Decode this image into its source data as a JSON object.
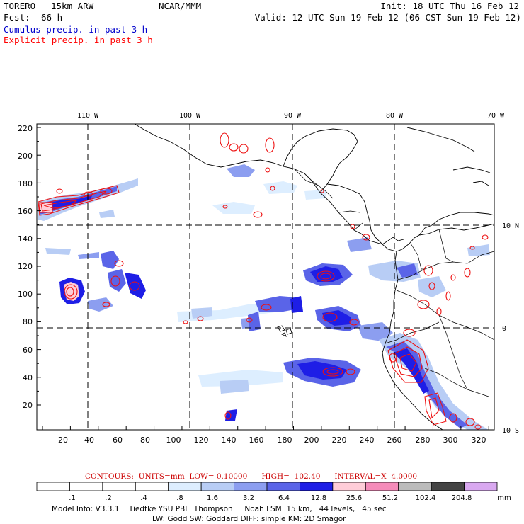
{
  "header": {
    "model": "TORERO",
    "resolution": "15km ARW",
    "org": "NCAR/MMM",
    "init": "Init: 18 UTC Thu 16 Feb 12",
    "fcst_label": "Fcst:",
    "fcst_value": "66 h",
    "valid": "Valid: 12 UTC Sun 19 Feb 12 (06 CST Sun 19 Feb 12)",
    "field1": "Cumulus precip. in past 3 h",
    "field2": "Explicit precip. in past 3 h"
  },
  "colors": {
    "field1": "#0000cc",
    "field2": "#ff0000",
    "contour": "#ee1111",
    "footer_contour_text": "#cc0000"
  },
  "map": {
    "lon_labels": [
      "110 W",
      "100 W",
      "90 W",
      "80 W",
      "70 W"
    ],
    "lat_labels": [
      "10 N",
      "0",
      "10 S"
    ],
    "x_ticks": [
      "20",
      "40",
      "60",
      "80",
      "100",
      "120",
      "140",
      "160",
      "180",
      "200",
      "220",
      "240",
      "260",
      "280",
      "300",
      "320"
    ],
    "y_ticks": [
      "20",
      "40",
      "60",
      "80",
      "100",
      "120",
      "140",
      "160",
      "180",
      "200",
      "220"
    ]
  },
  "footer": {
    "contours_text": "CONTOURS:  UNITS=mm  LOW= 0.10000      HIGH=  102.40      INTERVAL=X  4.0000",
    "colorbar_labels": [
      ".1",
      ".2",
      ".4",
      ".8",
      "1.6",
      "3.2",
      "6.4",
      "12.8",
      "25.6",
      "51.2",
      "102.4",
      "204.8"
    ],
    "colorbar_colors": [
      "#ffffff",
      "#ffffff",
      "#ffffff",
      "#ffffff",
      "#ddeeff",
      "#b8cdf5",
      "#8c9ef0",
      "#5a64e8",
      "#1e1ee6",
      "#ffcdd8",
      "#f58cba",
      "#bbbbbb",
      "#444444",
      "#d9a8f0"
    ],
    "units": "mm",
    "model_info_line1": "Model Info: V3.3.1    Tiedtke YSU PBL  Thompson     Noah LSM  15 km,   44 levels,   45 sec",
    "model_info_line2": "LW: Godd SW: Goddard DIFF: simple KM: 2D Smagor"
  }
}
